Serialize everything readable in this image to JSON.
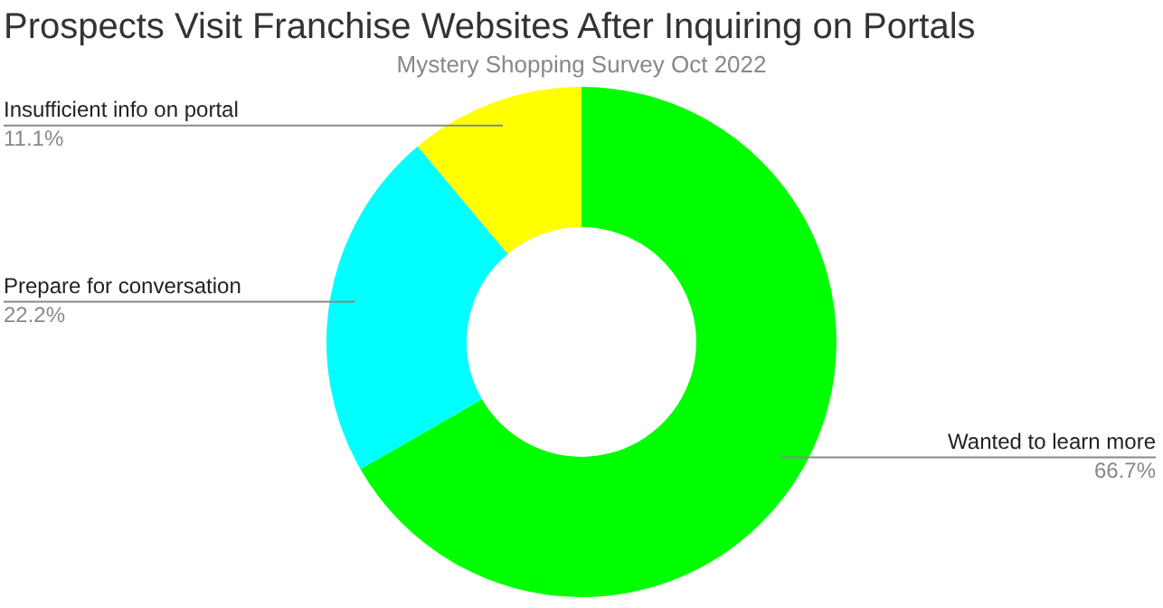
{
  "chart_data": {
    "type": "donut",
    "title": "Prospects Visit Franchise Websites After Inquiring on Portals",
    "subtitle": "Mystery Shopping Survey  Oct 2022",
    "categories": [
      "Wanted to learn more",
      "Prepare for conversation",
      "Insufficient info on portal"
    ],
    "values": [
      66.7,
      22.2,
      11.1
    ],
    "colors": [
      "#00ff00",
      "#00ffff",
      "#ffff00"
    ],
    "value_labels": [
      "66.7%",
      "22.2%",
      "11.1%"
    ],
    "legend": false
  }
}
